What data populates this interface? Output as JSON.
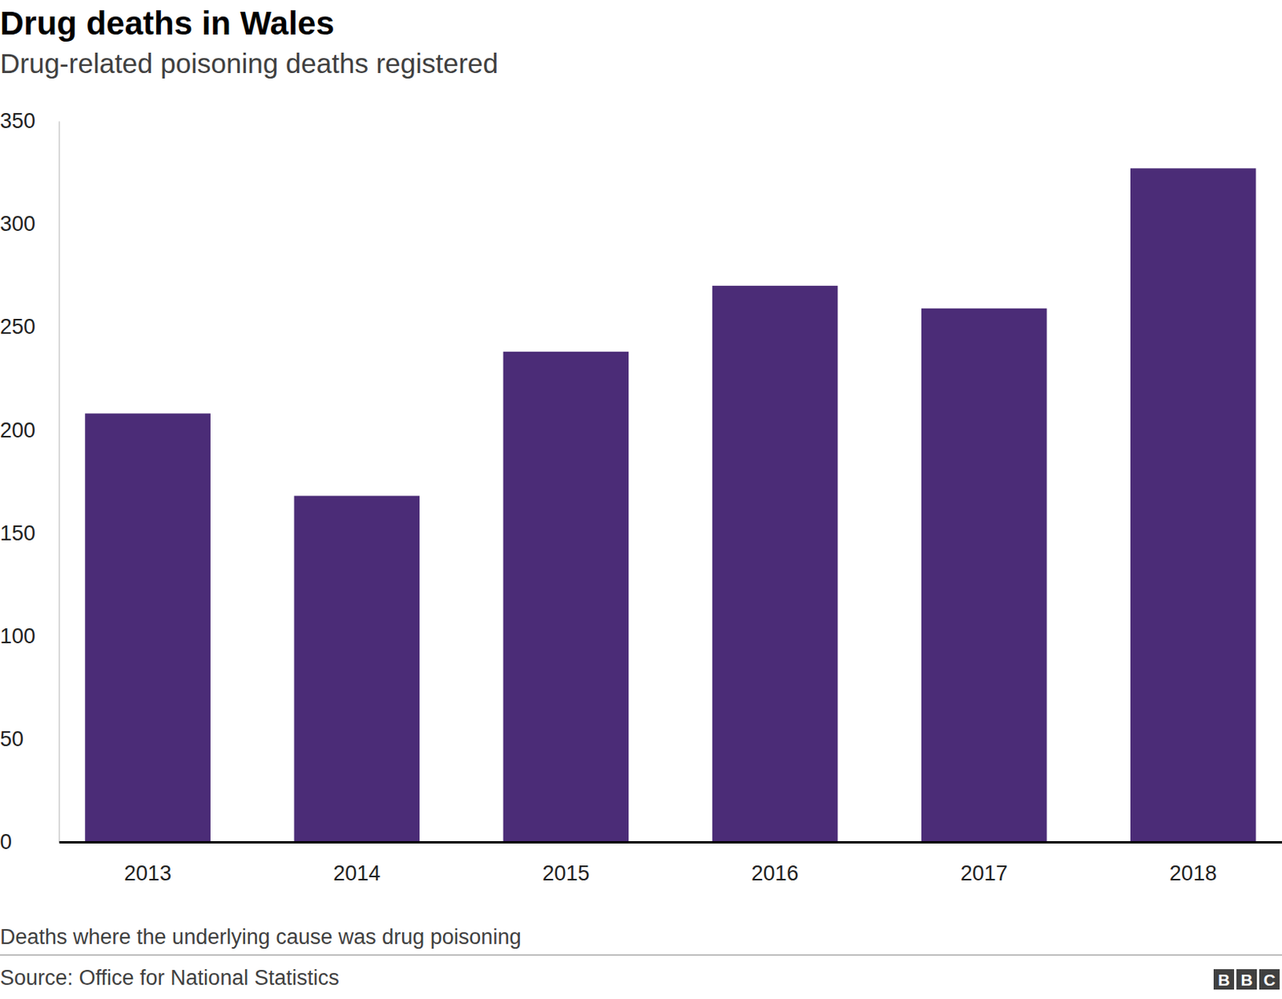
{
  "chart_data": {
    "type": "bar",
    "title": "Drug deaths in Wales",
    "subtitle": "Drug-related poisoning deaths registered",
    "note": "Deaths where the underlying cause was drug poisoning",
    "source": "Source: Office for National Statistics",
    "logo": "BBC",
    "categories": [
      "2013",
      "2014",
      "2015",
      "2016",
      "2017",
      "2018"
    ],
    "values": [
      208,
      168,
      238,
      270,
      259,
      327
    ],
    "color": "#4b2c77",
    "ylim": [
      0,
      350
    ],
    "yticks": [
      0,
      50,
      100,
      150,
      200,
      250,
      300,
      350
    ],
    "grid": false
  }
}
